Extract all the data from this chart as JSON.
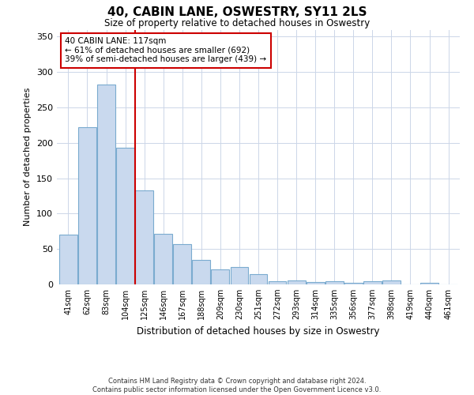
{
  "title": "40, CABIN LANE, OSWESTRY, SY11 2LS",
  "subtitle": "Size of property relative to detached houses in Oswestry",
  "xlabel": "Distribution of detached houses by size in Oswestry",
  "ylabel": "Number of detached properties",
  "bar_labels": [
    "41sqm",
    "62sqm",
    "83sqm",
    "104sqm",
    "125sqm",
    "146sqm",
    "167sqm",
    "188sqm",
    "209sqm",
    "230sqm",
    "251sqm",
    "272sqm",
    "293sqm",
    "314sqm",
    "335sqm",
    "356sqm",
    "377sqm",
    "398sqm",
    "419sqm",
    "440sqm",
    "461sqm"
  ],
  "bar_values": [
    70,
    222,
    282,
    193,
    133,
    72,
    57,
    35,
    21,
    25,
    14,
    5,
    6,
    3,
    5,
    2,
    5,
    6,
    0,
    2,
    0
  ],
  "bar_color": "#c9d9ee",
  "bar_edge_color": "#7aabcf",
  "vline_x": 3.5,
  "vline_color": "#cc0000",
  "annotation_text": "40 CABIN LANE: 117sqm\n← 61% of detached houses are smaller (692)\n39% of semi-detached houses are larger (439) →",
  "annotation_box_color": "#ffffff",
  "annotation_box_edge": "#cc0000",
  "ylim": [
    0,
    360
  ],
  "yticks": [
    0,
    50,
    100,
    150,
    200,
    250,
    300,
    350
  ],
  "footer": "Contains HM Land Registry data © Crown copyright and database right 2024.\nContains public sector information licensed under the Open Government Licence v3.0.",
  "bg_color": "#ffffff",
  "grid_color": "#ccd6e8"
}
